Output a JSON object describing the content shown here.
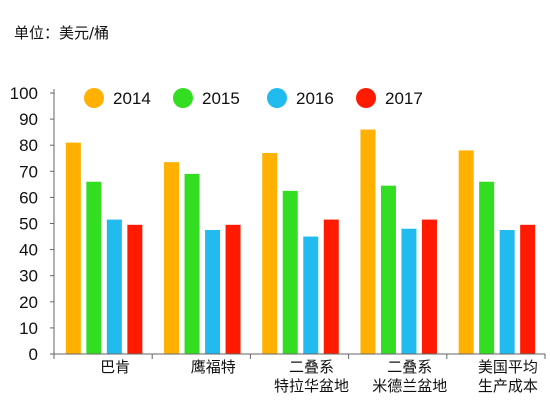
{
  "unit_label": "单位：美元/桶",
  "chart_data": {
    "type": "bar",
    "title": "",
    "xlabel": "",
    "ylabel": "",
    "ylim": [
      0,
      100
    ],
    "yticks": [
      0,
      10,
      20,
      30,
      40,
      50,
      60,
      70,
      80,
      90,
      100
    ],
    "grid": false,
    "legend_position": "top",
    "categories": [
      [
        "巴肯"
      ],
      [
        "鹰福特"
      ],
      [
        "二叠系",
        "特拉华盆地"
      ],
      [
        "二叠系",
        "米德兰盆地"
      ],
      [
        "美国平均",
        "生产成本"
      ]
    ],
    "series": [
      {
        "name": "2014",
        "color": "#FFB000",
        "values": [
          81,
          73.5,
          77,
          86,
          78
        ]
      },
      {
        "name": "2015",
        "color": "#33DD22",
        "values": [
          66,
          69,
          62.5,
          64.5,
          66
        ]
      },
      {
        "name": "2016",
        "color": "#22BBF0",
        "values": [
          51.5,
          47.5,
          45,
          48,
          47.5
        ]
      },
      {
        "name": "2017",
        "color": "#FF1A00",
        "values": [
          49.5,
          49.5,
          51.5,
          51.5,
          49.5
        ]
      }
    ]
  }
}
